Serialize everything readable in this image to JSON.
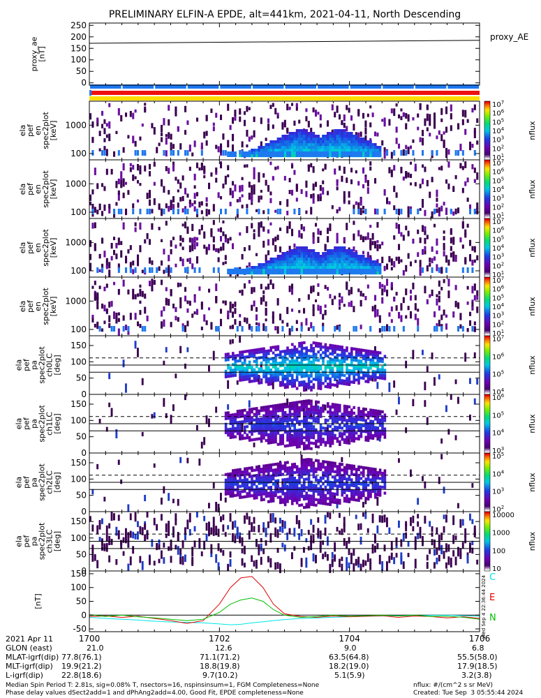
{
  "title": "PRELIMINARY ELFIN-A EPDE, alt=441km, 2021-04-11, North Descending",
  "palette": {
    "bg": "#ffffff",
    "fg": "#000000",
    "blue_bar": "#1e78f0",
    "red_bar": "#ee1111",
    "yellow_bar": "#ffdd00"
  },
  "chart_data": [
    {
      "type": "line",
      "panel": "proxy_ae",
      "ylabel": [
        "proxy_ae",
        "[nT]"
      ],
      "yticks": [
        "250",
        "200",
        "150",
        "100",
        "50",
        "0"
      ],
      "ylim": [
        -10,
        260
      ],
      "legend": "proxy_AE",
      "x": [
        1700,
        1706
      ],
      "values": [
        172,
        185
      ]
    },
    {
      "type": "heatmap",
      "panel": "spec1",
      "ylabel": [
        "ela",
        "pef",
        "en",
        "spec2plot",
        "[keV]"
      ],
      "yticks": [
        "1000",
        "100"
      ],
      "ylog": true,
      "cbar": {
        "ticks": [
          "10^7",
          "10^6",
          "10^5",
          "10^4",
          "10^3",
          "10^2",
          "10^1"
        ],
        "label": "nflux"
      }
    },
    {
      "type": "heatmap",
      "panel": "spec2",
      "ylabel": [
        "ela",
        "pef",
        "en",
        "spec2plot",
        "[keV]"
      ],
      "yticks": [
        "1000",
        "100"
      ],
      "ylog": true,
      "cbar": {
        "ticks": [
          "10^7",
          "10^6",
          "10^5",
          "10^4",
          "10^3",
          "10^2",
          "10^1"
        ],
        "label": "nflux"
      }
    },
    {
      "type": "heatmap",
      "panel": "spec3",
      "ylabel": [
        "ela",
        "pef",
        "en",
        "spec2plot",
        "[keV]"
      ],
      "yticks": [
        "1000",
        "100"
      ],
      "ylog": true,
      "cbar": {
        "ticks": [
          "10^7",
          "10^6",
          "10^5",
          "10^4",
          "10^3",
          "10^2",
          "10^1"
        ],
        "label": "nflux"
      }
    },
    {
      "type": "heatmap",
      "panel": "spec4",
      "ylabel": [
        "ela",
        "pef",
        "en",
        "spec2plot",
        "[keV]"
      ],
      "yticks": [
        "1000",
        "100"
      ],
      "ylog": true,
      "cbar": {
        "ticks": [
          "10^7",
          "10^6",
          "10^5",
          "10^4",
          "10^3",
          "10^2",
          "10^1"
        ],
        "label": "nflux"
      }
    },
    {
      "type": "heatmap",
      "panel": "ch0",
      "ylabel": [
        "ela",
        "pef",
        "pa",
        "spec2plot",
        "ch0LC",
        "[deg]"
      ],
      "yticks": [
        "150",
        "100",
        "50",
        "0"
      ],
      "ylim": [
        0,
        180
      ],
      "cbar": {
        "ticks": [
          "10^7",
          "10^6",
          "10^5",
          "10^4"
        ],
        "label": "nflux"
      }
    },
    {
      "type": "heatmap",
      "panel": "ch1",
      "ylabel": [
        "ela",
        "pef",
        "pa",
        "spec2plot",
        "ch1LC",
        "[deg]"
      ],
      "yticks": [
        "150",
        "100",
        "50",
        "0"
      ],
      "ylim": [
        0,
        180
      ],
      "cbar": {
        "ticks": [
          "10^6",
          "10^5",
          "10^4",
          "10^3"
        ],
        "label": "nflux"
      }
    },
    {
      "type": "heatmap",
      "panel": "ch2",
      "ylabel": [
        "ela",
        "pef",
        "pa",
        "spec2plot",
        "ch2LC",
        "[deg]"
      ],
      "yticks": [
        "150",
        "100",
        "50",
        "0"
      ],
      "ylim": [
        0,
        180
      ],
      "cbar": {
        "ticks": [
          "10^5",
          "10^4",
          "10^3",
          "10^2"
        ],
        "label": "nflux"
      }
    },
    {
      "type": "heatmap",
      "panel": "ch3",
      "ylabel": [
        "ela",
        "pef",
        "pa",
        "spec2plot",
        "ch3LC",
        "[deg]"
      ],
      "yticks": [
        "150",
        "100",
        "50",
        "0"
      ],
      "ylim": [
        0,
        180
      ],
      "cbar": {
        "ticks": [
          "10000",
          "1000",
          "100",
          "10"
        ],
        "label": "nflux"
      }
    },
    {
      "type": "line",
      "panel": "bfield",
      "ylabel": [
        "[nT]"
      ],
      "yticks": [
        "150",
        "100",
        "50",
        "0",
        "-50"
      ],
      "ylim": [
        -60,
        160
      ],
      "x": [
        1700,
        1700.25,
        1700.5,
        1700.75,
        1701,
        1701.25,
        1701.5,
        1701.75,
        1702,
        1702.17,
        1702.33,
        1702.5,
        1702.67,
        1702.83,
        1703,
        1703.25,
        1703.5,
        1703.75,
        1704,
        1704.25,
        1704.5,
        1704.75,
        1705,
        1705.25,
        1705.5,
        1705.75,
        1706
      ],
      "series": [
        {
          "name": "C",
          "color": "#00e5e5",
          "values": [
            -8,
            -12,
            -15,
            -18,
            -22,
            -25,
            -26,
            -28,
            -32,
            -35,
            -33,
            -28,
            -24,
            -20,
            -16,
            -12,
            -10,
            -8,
            -6,
            -4,
            -3,
            -2,
            -2,
            -1,
            0,
            -2,
            -4
          ]
        },
        {
          "name": "E",
          "color": "#e00000",
          "values": [
            -5,
            -3,
            -8,
            -4,
            -12,
            -20,
            -30,
            -20,
            40,
            100,
            135,
            140,
            100,
            40,
            5,
            -5,
            -8,
            -3,
            -6,
            -4,
            -2,
            -8,
            -3,
            -5,
            -10,
            -6,
            -12
          ]
        },
        {
          "name": "N",
          "color": "#00c000",
          "values": [
            2,
            -5,
            0,
            -6,
            -10,
            -15,
            -20,
            -15,
            10,
            40,
            55,
            62,
            50,
            20,
            0,
            -8,
            -5,
            0,
            -4,
            -2,
            0,
            -3,
            0,
            -5,
            -4,
            -8,
            -15
          ]
        }
      ]
    }
  ],
  "xaxis": {
    "tick_values": [
      1700,
      1702,
      1704,
      1706
    ],
    "tick_labels": [
      "1700",
      "1702",
      "1704",
      "1706"
    ]
  },
  "footer": {
    "date": "2021 Apr 11",
    "rows": [
      {
        "label": "GLON (east)",
        "values": [
          "21.0",
          "12.6",
          "9.0",
          "6.8"
        ]
      },
      {
        "label": "MLAT-igrf(dip)",
        "values": [
          "77.8(76.1)",
          "71.1(71.2)",
          "63.5(64.8)",
          "55.5(58.0)"
        ]
      },
      {
        "label": "MLT-igrf(dip)",
        "values": [
          "19.9(21.2)",
          "18.8(19.8)",
          "18.2(19.0)",
          "17.9(18.5)"
        ]
      },
      {
        "label": "L-igrf(dip)",
        "values": [
          "22.8(18.6)",
          "9.7(10.2)",
          "5.1(5.9)",
          "3.2(3.8)"
        ]
      }
    ],
    "note1": "Median Spin Period T: 2.81s, sig=0.08% T, nsectors=16, nspinsinsum=1, FGM Completeness=None",
    "note2": "Phase delay values dSect2add=1 and dPhAng2add=4.00, Good Fit, EPDE completeness=None",
    "units": "nflux: #/(cm^2 s sr MeV)",
    "created": "Created: Tue Sep  3 05:55:44 2024",
    "side_stamp": "Wed Sep  4 22:36:44 2024"
  }
}
